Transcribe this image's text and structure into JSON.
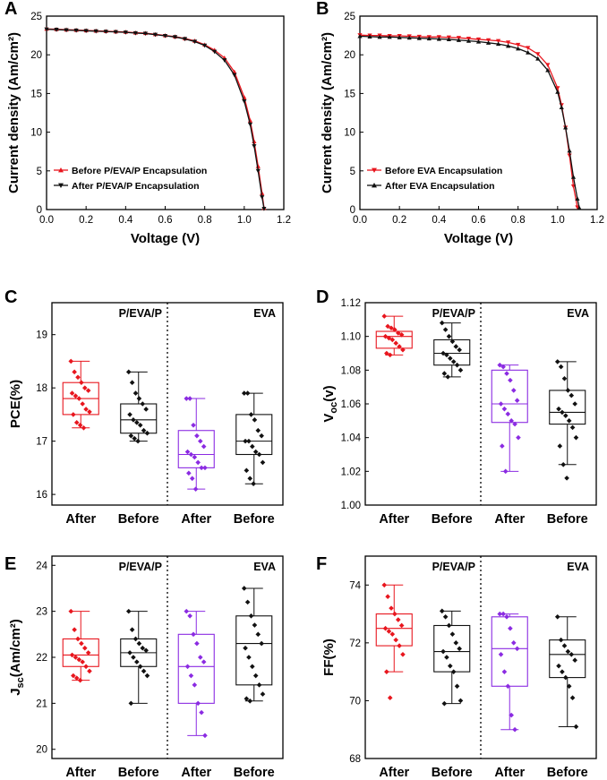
{
  "chart_data": [
    {
      "panel": "A",
      "type": "line",
      "xlabel": "Voltage (V)",
      "ylabel": "Current density (Am/cm²)",
      "xlim": [
        0,
        1.2
      ],
      "ylim": [
        0,
        25
      ],
      "xticks": [
        "0.0",
        "0.2",
        "0.4",
        "0.6",
        "0.8",
        "1.0",
        "1.2"
      ],
      "yticks": [
        "0",
        "5",
        "10",
        "15",
        "20",
        "25"
      ],
      "series": [
        {
          "name": "Before P/EVA/P Encapsulation",
          "color": "#e8161e",
          "marker": "triangle-up",
          "x": [
            0,
            0.05,
            0.1,
            0.15,
            0.2,
            0.25,
            0.3,
            0.35,
            0.4,
            0.45,
            0.5,
            0.55,
            0.6,
            0.65,
            0.7,
            0.75,
            0.8,
            0.85,
            0.9,
            0.95,
            1.0,
            1.03,
            1.05,
            1.07,
            1.09,
            1.1
          ],
          "y": [
            23.35,
            23.3,
            23.25,
            23.2,
            23.15,
            23.1,
            23.05,
            23.0,
            22.95,
            22.85,
            22.8,
            22.65,
            22.5,
            22.35,
            22.1,
            21.8,
            21.3,
            20.6,
            19.6,
            17.8,
            14.5,
            11.5,
            8.8,
            5.6,
            2.1,
            0.2
          ]
        },
        {
          "name": "After P/EVA/P Encapsulation",
          "color": "#111111",
          "marker": "triangle-down",
          "x": [
            0,
            0.05,
            0.1,
            0.15,
            0.2,
            0.25,
            0.3,
            0.35,
            0.4,
            0.45,
            0.5,
            0.55,
            0.6,
            0.65,
            0.7,
            0.75,
            0.8,
            0.85,
            0.9,
            0.95,
            1.0,
            1.03,
            1.05,
            1.07,
            1.09,
            1.1
          ],
          "y": [
            23.3,
            23.25,
            23.2,
            23.15,
            23.1,
            23.05,
            23.0,
            22.95,
            22.9,
            22.8,
            22.75,
            22.6,
            22.45,
            22.3,
            22.05,
            21.7,
            21.2,
            20.4,
            19.3,
            17.4,
            14.0,
            11.0,
            8.2,
            5.0,
            1.6,
            0.1
          ]
        }
      ]
    },
    {
      "panel": "B",
      "type": "line",
      "xlabel": "Voltage (V)",
      "ylabel": "Current density (Am/cm²)",
      "xlim": [
        0,
        1.2
      ],
      "ylim": [
        0,
        25
      ],
      "xticks": [
        "0.0",
        "0.2",
        "0.4",
        "0.6",
        "0.8",
        "1.0",
        "1.2"
      ],
      "yticks": [
        "0",
        "5",
        "10",
        "15",
        "20",
        "25"
      ],
      "series": [
        {
          "name": "Before EVA Encapsulation",
          "color": "#e8161e",
          "marker": "triangle-down",
          "x": [
            0,
            0.05,
            0.1,
            0.15,
            0.2,
            0.25,
            0.3,
            0.35,
            0.4,
            0.45,
            0.5,
            0.55,
            0.6,
            0.65,
            0.7,
            0.75,
            0.8,
            0.85,
            0.9,
            0.95,
            1.0,
            1.02,
            1.04,
            1.06,
            1.08,
            1.1
          ],
          "y": [
            22.55,
            22.5,
            22.5,
            22.45,
            22.45,
            22.4,
            22.35,
            22.3,
            22.3,
            22.25,
            22.2,
            22.1,
            22.0,
            21.9,
            21.8,
            21.6,
            21.3,
            20.9,
            20.1,
            18.7,
            15.7,
            13.5,
            10.6,
            7.0,
            3.0,
            0.3
          ]
        },
        {
          "name": "After EVA Encapsulation",
          "color": "#111111",
          "marker": "triangle-up",
          "x": [
            0,
            0.05,
            0.1,
            0.15,
            0.2,
            0.25,
            0.3,
            0.35,
            0.4,
            0.45,
            0.5,
            0.55,
            0.6,
            0.65,
            0.7,
            0.75,
            0.8,
            0.85,
            0.9,
            0.95,
            1.0,
            1.02,
            1.04,
            1.06,
            1.08,
            1.1,
            1.11
          ],
          "y": [
            22.4,
            22.35,
            22.3,
            22.3,
            22.25,
            22.2,
            22.15,
            22.1,
            22.05,
            22.0,
            21.9,
            21.8,
            21.7,
            21.55,
            21.4,
            21.15,
            20.8,
            20.3,
            19.5,
            18.0,
            15.2,
            13.2,
            10.6,
            7.6,
            4.2,
            1.4,
            0.2
          ]
        }
      ]
    },
    {
      "panel": "C",
      "type": "box",
      "ylabel": "PCE(%)",
      "ylim": [
        15.8,
        19.6
      ],
      "yticks": [
        "16",
        "17",
        "18",
        "19"
      ],
      "categories": [
        "After",
        "Before",
        "After",
        "Before"
      ],
      "group_labels": [
        "P/EVA/P",
        "EVA"
      ],
      "boxes": [
        {
          "color": "#e8161e",
          "min": 17.25,
          "q1": 17.5,
          "median": 17.8,
          "q3": 18.1,
          "max": 18.5,
          "points": [
            18.5,
            18.3,
            18.2,
            18.1,
            18.0,
            17.95,
            17.9,
            17.85,
            17.8,
            17.7,
            17.6,
            17.55,
            17.5,
            17.35,
            17.3,
            17.25
          ]
        },
        {
          "color": "#111111",
          "min": 17.0,
          "q1": 17.15,
          "median": 17.4,
          "q3": 17.7,
          "max": 18.3,
          "points": [
            18.3,
            18.1,
            17.9,
            17.8,
            17.7,
            17.6,
            17.5,
            17.4,
            17.35,
            17.3,
            17.2,
            17.15,
            17.1,
            17.05,
            17.0
          ]
        },
        {
          "color": "#8b2be2",
          "min": 16.1,
          "q1": 16.5,
          "median": 16.75,
          "q3": 17.2,
          "max": 17.8,
          "points": [
            17.8,
            17.8,
            17.3,
            17.1,
            17.0,
            16.9,
            16.8,
            16.75,
            16.7,
            16.6,
            16.5,
            16.5,
            16.4,
            16.3,
            16.1
          ]
        },
        {
          "color": "#111111",
          "min": 16.2,
          "q1": 16.75,
          "median": 17.0,
          "q3": 17.5,
          "max": 17.9,
          "points": [
            17.9,
            17.9,
            17.5,
            17.4,
            17.2,
            17.1,
            17.0,
            17.0,
            16.9,
            16.8,
            16.75,
            16.6,
            16.45,
            16.3,
            16.2
          ]
        }
      ]
    },
    {
      "panel": "D",
      "type": "box",
      "ylabel": "V_oc(v)",
      "ylim": [
        1.0,
        1.12
      ],
      "yticks": [
        "1.00",
        "1.02",
        "1.04",
        "1.06",
        "1.08",
        "1.10",
        "1.12"
      ],
      "categories": [
        "After",
        "Before",
        "After",
        "Before"
      ],
      "group_labels": [
        "P/EVA/P",
        "EVA"
      ],
      "boxes": [
        {
          "color": "#e8161e",
          "min": 1.089,
          "q1": 1.093,
          "median": 1.1,
          "q3": 1.103,
          "max": 1.112,
          "points": [
            1.112,
            1.106,
            1.105,
            1.104,
            1.102,
            1.101,
            1.1,
            1.099,
            1.098,
            1.096,
            1.094,
            1.092,
            1.09,
            1.089
          ]
        },
        {
          "color": "#111111",
          "min": 1.076,
          "q1": 1.083,
          "median": 1.09,
          "q3": 1.098,
          "max": 1.108,
          "points": [
            1.108,
            1.104,
            1.1,
            1.097,
            1.094,
            1.092,
            1.09,
            1.089,
            1.087,
            1.085,
            1.083,
            1.08,
            1.078,
            1.076
          ]
        },
        {
          "color": "#8b2be2",
          "min": 1.02,
          "q1": 1.049,
          "median": 1.06,
          "q3": 1.08,
          "max": 1.083,
          "points": [
            1.083,
            1.082,
            1.078,
            1.074,
            1.068,
            1.062,
            1.06,
            1.057,
            1.054,
            1.05,
            1.048,
            1.04,
            1.035,
            1.02
          ]
        },
        {
          "color": "#111111",
          "min": 1.024,
          "q1": 1.048,
          "median": 1.055,
          "q3": 1.068,
          "max": 1.085,
          "points": [
            1.085,
            1.082,
            1.075,
            1.068,
            1.065,
            1.06,
            1.057,
            1.055,
            1.053,
            1.05,
            1.046,
            1.04,
            1.035,
            1.024,
            1.016
          ]
        }
      ]
    },
    {
      "panel": "E",
      "type": "box",
      "ylabel": "J_sc(Am/cm²)",
      "ylim": [
        19.8,
        24.2
      ],
      "yticks": [
        "20",
        "21",
        "22",
        "23",
        "24"
      ],
      "categories": [
        "After",
        "Before",
        "After",
        "Before"
      ],
      "group_labels": [
        "P/EVA/P",
        "EVA"
      ],
      "boxes": [
        {
          "color": "#e8161e",
          "min": 21.5,
          "q1": 21.8,
          "median": 22.05,
          "q3": 22.4,
          "max": 23.0,
          "points": [
            23.0,
            22.6,
            22.4,
            22.3,
            22.2,
            22.1,
            22.05,
            22.0,
            21.95,
            21.9,
            21.8,
            21.7,
            21.6,
            21.55,
            21.5
          ]
        },
        {
          "color": "#111111",
          "min": 21.0,
          "q1": 21.8,
          "median": 22.1,
          "q3": 22.4,
          "max": 23.0,
          "points": [
            23.0,
            22.6,
            22.4,
            22.3,
            22.2,
            22.15,
            22.1,
            22.0,
            21.9,
            21.8,
            21.7,
            21.6,
            21.0
          ]
        },
        {
          "color": "#8b2be2",
          "min": 20.3,
          "q1": 21.0,
          "median": 21.8,
          "q3": 22.5,
          "max": 23.0,
          "points": [
            23.0,
            22.9,
            22.5,
            22.3,
            22.0,
            21.9,
            21.8,
            21.6,
            21.4,
            21.0,
            20.8,
            20.3
          ]
        },
        {
          "color": "#111111",
          "min": 21.05,
          "q1": 21.4,
          "median": 22.3,
          "q3": 22.9,
          "max": 23.5,
          "points": [
            23.5,
            23.2,
            22.9,
            22.7,
            22.5,
            22.3,
            22.2,
            22.0,
            21.8,
            21.6,
            21.4,
            21.2,
            21.1,
            21.05
          ]
        }
      ]
    },
    {
      "panel": "F",
      "type": "box",
      "ylabel": "FF(%)",
      "ylim": [
        68.0,
        75.0
      ],
      "yticks": [
        "68",
        "70",
        "72",
        "74"
      ],
      "categories": [
        "After",
        "Before",
        "After",
        "Before"
      ],
      "group_labels": [
        "P/EVA/P",
        "EVA"
      ],
      "boxes": [
        {
          "color": "#e8161e",
          "min": 71.0,
          "q1": 71.9,
          "median": 72.5,
          "q3": 73.0,
          "max": 74.0,
          "points": [
            74.0,
            73.6,
            73.2,
            73.0,
            72.8,
            72.6,
            72.5,
            72.4,
            72.3,
            72.1,
            71.9,
            71.6,
            71.0,
            70.1
          ]
        },
        {
          "color": "#111111",
          "min": 69.9,
          "q1": 71.0,
          "median": 71.7,
          "q3": 72.6,
          "max": 73.1,
          "points": [
            73.1,
            72.9,
            72.6,
            72.3,
            72.0,
            71.8,
            71.7,
            71.5,
            71.2,
            71.0,
            70.5,
            70.0,
            69.9
          ]
        },
        {
          "color": "#8b2be2",
          "min": 69.0,
          "q1": 70.5,
          "median": 71.8,
          "q3": 72.9,
          "max": 73.0,
          "points": [
            73.0,
            73.0,
            72.9,
            72.5,
            72.0,
            71.8,
            71.6,
            71.0,
            70.5,
            69.5,
            69.0
          ]
        },
        {
          "color": "#111111",
          "min": 69.1,
          "q1": 70.8,
          "median": 71.6,
          "q3": 72.1,
          "max": 72.9,
          "points": [
            72.9,
            72.1,
            71.9,
            71.7,
            71.6,
            71.4,
            71.2,
            71.0,
            70.8,
            70.5,
            70.1,
            69.1
          ]
        }
      ]
    }
  ]
}
